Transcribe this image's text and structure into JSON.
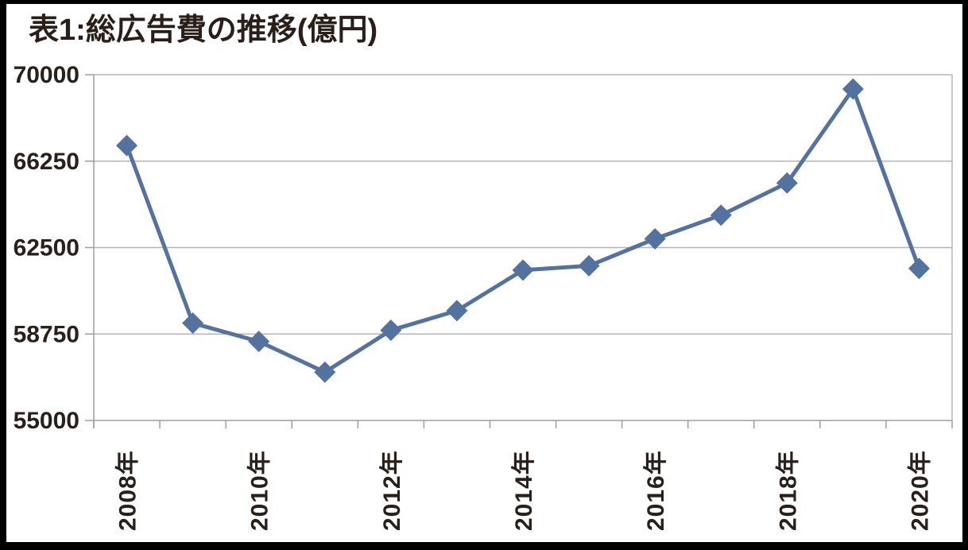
{
  "title": "表1:総広告費の推移(億円)",
  "chart_data": {
    "type": "line",
    "title": "表1:総広告費の推移(億円)",
    "categories": [
      "2008年",
      "2009年",
      "2010年",
      "2011年",
      "2012年",
      "2013年",
      "2014年",
      "2015年",
      "2016年",
      "2017年",
      "2018年",
      "2019年",
      "2020年"
    ],
    "values": [
      66926,
      59222,
      58427,
      57096,
      58913,
      59762,
      61522,
      61710,
      62880,
      63907,
      65300,
      69381,
      61594
    ],
    "series_name": "総広告費",
    "xlabel": "",
    "ylabel": "",
    "unit": "億円",
    "ylim": [
      55000,
      70000
    ],
    "yticks": [
      55000,
      58750,
      62500,
      66250,
      70000
    ],
    "xtick_labels_shown": [
      "2008年",
      "2010年",
      "2012年",
      "2014年",
      "2016年",
      "2018年",
      "2020年"
    ],
    "x_label_interval": 2,
    "x_label_rotation_deg": -90,
    "grid": true,
    "legend_position": "none",
    "marker": "diamond",
    "colors": {
      "line": "#54729f",
      "marker": "#54729f",
      "grid": "#b5b5b5",
      "axis": "#9e9e9e",
      "text": "#2a201b",
      "background": "#ffffff",
      "frame": "#000000"
    }
  }
}
